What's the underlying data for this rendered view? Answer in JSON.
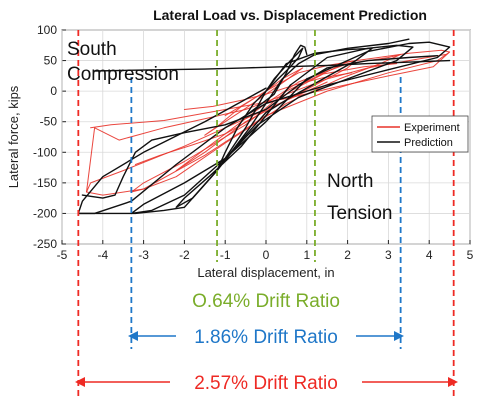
{
  "chart_data": {
    "type": "line",
    "title": "Lateral Load vs. Displacement Prediction",
    "xlabel": "Lateral displacement, in",
    "ylabel": "Lateral force, kips",
    "xlim": [
      -5,
      5
    ],
    "ylim": [
      -250,
      100
    ],
    "xticks": [
      -5,
      -4,
      -3,
      -2,
      -1,
      0,
      1,
      2,
      3,
      4,
      5
    ],
    "yticks": [
      -250,
      -200,
      -150,
      -100,
      -50,
      0,
      50,
      100
    ],
    "grid": true,
    "legend": {
      "position": "right",
      "entries": [
        "Experiment",
        "Prediction"
      ]
    },
    "series": [
      {
        "name": "Experiment",
        "color": "#e8332a",
        "loops": [
          [
            [
              -1.0,
              -40
            ],
            [
              -0.5,
              -20
            ],
            [
              0,
              0
            ],
            [
              0.4,
              20
            ],
            [
              0.9,
              38
            ],
            [
              0.5,
              18
            ],
            [
              0,
              -5
            ],
            [
              -0.5,
              -28
            ],
            [
              -1.0,
              -50
            ],
            [
              -1.5,
              -72
            ],
            [
              -1.2,
              -58
            ],
            [
              -0.6,
              -25
            ],
            [
              0,
              0
            ]
          ],
          [
            [
              0,
              0
            ],
            [
              0.8,
              30
            ],
            [
              1.5,
              42
            ],
            [
              2.2,
              50
            ],
            [
              2.0,
              38
            ],
            [
              1.2,
              10
            ],
            [
              0.5,
              -15
            ],
            [
              -0.5,
              -50
            ],
            [
              -1.5,
              -100
            ],
            [
              -2.2,
              -130
            ],
            [
              -1.8,
              -110
            ],
            [
              -1.0,
              -70
            ],
            [
              0,
              -20
            ],
            [
              0.8,
              15
            ]
          ],
          [
            [
              0.8,
              15
            ],
            [
              2.0,
              45
            ],
            [
              3.0,
              55
            ],
            [
              3.3,
              60
            ],
            [
              2.8,
              45
            ],
            [
              1.8,
              20
            ],
            [
              0.5,
              -20
            ],
            [
              -1.0,
              -85
            ],
            [
              -2.2,
              -140
            ],
            [
              -3.0,
              -160
            ],
            [
              -3.3,
              -165
            ],
            [
              -3.0,
              -150
            ],
            [
              -2.0,
              -115
            ],
            [
              -0.5,
              -55
            ],
            [
              0.5,
              0
            ]
          ],
          [
            [
              0.5,
              0
            ],
            [
              2.0,
              48
            ],
            [
              3.5,
              62
            ],
            [
              4.3,
              67
            ],
            [
              4.5,
              64
            ],
            [
              4.2,
              50
            ],
            [
              3.0,
              30
            ],
            [
              1.5,
              0
            ],
            [
              0,
              -40
            ],
            [
              -1.5,
              -105
            ],
            [
              -3.0,
              -160
            ],
            [
              -4.0,
              -170
            ],
            [
              -4.4,
              -165
            ],
            [
              -4.3,
              -150
            ],
            [
              -3.5,
              -130
            ],
            [
              -2.0,
              -90
            ],
            [
              0,
              -30
            ],
            [
              1.5,
              15
            ]
          ],
          [
            [
              -4.4,
              -165
            ],
            [
              -4.2,
              -60
            ],
            [
              -3.6,
              -80
            ],
            [
              -2.5,
              -60
            ],
            [
              -1.5,
              -45
            ],
            [
              -0.5,
              -30
            ],
            [
              0.5,
              -5
            ],
            [
              1.5,
              20
            ],
            [
              2.5,
              38
            ],
            [
              3.5,
              50
            ],
            [
              4.4,
              60
            ]
          ],
          [
            [
              4.5,
              64
            ],
            [
              4.1,
              40
            ],
            [
              3.0,
              25
            ],
            [
              1.8,
              8
            ],
            [
              0.5,
              -12
            ],
            [
              -1.0,
              -30
            ],
            [
              -2.5,
              -48
            ],
            [
              -3.8,
              -55
            ],
            [
              -4.3,
              -60
            ]
          ],
          [
            [
              -3.2,
              -120
            ],
            [
              -2.6,
              -105
            ],
            [
              -1.8,
              -88
            ],
            [
              -1.0,
              -70
            ],
            [
              -0.2,
              -40
            ],
            [
              0.6,
              0
            ],
            [
              1.4,
              28
            ],
            [
              2.4,
              40
            ],
            [
              3.2,
              45
            ]
          ],
          [
            [
              -2.0,
              -30
            ],
            [
              -1.3,
              -25
            ],
            [
              -0.6,
              -15
            ],
            [
              0,
              -5
            ],
            [
              0.7,
              10
            ],
            [
              1.4,
              22
            ],
            [
              2.1,
              30
            ]
          ]
        ]
      },
      {
        "name": "Prediction",
        "color": "#111111",
        "loops": [
          [
            [
              0,
              0
            ],
            [
              0.3,
              20
            ],
            [
              0.6,
              40
            ],
            [
              0.8,
              55
            ],
            [
              0.9,
              70
            ],
            [
              0.6,
              50
            ],
            [
              0.2,
              20
            ],
            [
              0,
              0
            ],
            [
              -0.3,
              -20
            ],
            [
              -0.7,
              -60
            ],
            [
              -1.0,
              -100
            ],
            [
              -1.2,
              -130
            ],
            [
              -1.0,
              -110
            ],
            [
              -0.5,
              -60
            ],
            [
              0,
              0
            ]
          ],
          [
            [
              0,
              0
            ],
            [
              0.5,
              45
            ],
            [
              1.2,
              62
            ],
            [
              2.0,
              68
            ],
            [
              2.6,
              70
            ],
            [
              2.2,
              50
            ],
            [
              1.4,
              20
            ],
            [
              0.6,
              -10
            ],
            [
              0,
              -35
            ],
            [
              -0.6,
              -80
            ],
            [
              -1.2,
              -130
            ],
            [
              -1.8,
              -175
            ],
            [
              -2.2,
              -190
            ],
            [
              -2.0,
              -175
            ],
            [
              -1.4,
              -140
            ],
            [
              -0.6,
              -90
            ],
            [
              0,
              -40
            ],
            [
              0.6,
              10
            ]
          ],
          [
            [
              0.6,
              10
            ],
            [
              1.5,
              55
            ],
            [
              2.5,
              70
            ],
            [
              3.2,
              75
            ],
            [
              3.6,
              72
            ],
            [
              3.2,
              50
            ],
            [
              2.0,
              20
            ],
            [
              0.8,
              -10
            ],
            [
              -0.2,
              -55
            ],
            [
              -1.0,
              -110
            ],
            [
              -2.0,
              -170
            ],
            [
              -2.8,
              -195
            ],
            [
              -3.3,
              -200
            ],
            [
              -3.0,
              -185
            ],
            [
              -2.0,
              -150
            ],
            [
              -1.0,
              -110
            ],
            [
              0,
              -50
            ],
            [
              1.0,
              20
            ]
          ],
          [
            [
              1.0,
              20
            ],
            [
              2.5,
              65
            ],
            [
              3.5,
              78
            ],
            [
              4.0,
              80
            ],
            [
              4.5,
              72
            ],
            [
              4.2,
              55
            ],
            [
              3.0,
              35
            ],
            [
              1.5,
              10
            ],
            [
              0,
              -20
            ],
            [
              -1.0,
              -60
            ],
            [
              -2.2,
              -120
            ],
            [
              -3.3,
              -180
            ],
            [
              -4.2,
              -200
            ],
            [
              -4.6,
              -200
            ],
            [
              -4.5,
              -180
            ],
            [
              -4.0,
              -140
            ],
            [
              -3.0,
              -100
            ],
            [
              -1.5,
              -50
            ],
            [
              0,
              5
            ]
          ],
          [
            [
              -4.6,
              -200
            ],
            [
              -3.8,
              -200
            ],
            [
              -3.2,
              -200
            ],
            [
              -2.5,
              -195
            ],
            [
              -2.0,
              -190
            ],
            [
              -1.6,
              -160
            ],
            [
              -1.2,
              -130
            ],
            [
              -0.8,
              -95
            ],
            [
              -0.4,
              -60
            ],
            [
              0,
              -20
            ],
            [
              0.4,
              20
            ],
            [
              0.8,
              45
            ],
            [
              1.2,
              60
            ],
            [
              2.0,
              70
            ],
            [
              3.0,
              78
            ],
            [
              3.5,
              85
            ]
          ],
          [
            [
              4.5,
              50
            ],
            [
              3.7,
              48
            ],
            [
              2.5,
              45
            ],
            [
              1.5,
              42
            ],
            [
              0.5,
              40
            ],
            [
              -0.5,
              38
            ],
            [
              -1.5,
              36
            ],
            [
              -2.5,
              35
            ],
            [
              -3.5,
              34
            ],
            [
              -4.2,
              33
            ]
          ],
          [
            [
              -4.5,
              -170
            ],
            [
              -4.3,
              -172
            ],
            [
              -4.0,
              -175
            ],
            [
              -3.7,
              -170
            ],
            [
              -3.5,
              -140
            ],
            [
              -3.2,
              -100
            ],
            [
              -2.8,
              -80
            ],
            [
              -2.0,
              -68
            ],
            [
              -1.0,
              -55
            ],
            [
              0,
              -30
            ],
            [
              0.8,
              10
            ],
            [
              1.5,
              38
            ],
            [
              2.5,
              50
            ],
            [
              3.5,
              55
            ],
            [
              4.2,
              58
            ]
          ],
          [
            [
              -0.6,
              -45
            ],
            [
              0.2,
              -5
            ],
            [
              0.5,
              30
            ],
            [
              0.7,
              60
            ],
            [
              0.85,
              75
            ],
            [
              0.95,
              72
            ],
            [
              1.0,
              60
            ]
          ]
        ]
      }
    ]
  },
  "annotations": {
    "south_line1": "South",
    "south_line2": "Compression",
    "north_line1": "North",
    "north_line2": "Tension"
  },
  "drift_ratios": [
    {
      "label": "O.64% Drift Ratio",
      "value": 0.64,
      "x_left": -1.2,
      "x_right": 1.2,
      "color": "#7aad2a"
    },
    {
      "label": "1.86% Drift Ratio",
      "value": 1.86,
      "x_left": -3.3,
      "x_right": 3.3,
      "color": "#1f77c8"
    },
    {
      "label": "2.57% Drift Ratio",
      "value": 2.57,
      "x_left": -4.6,
      "x_right": 4.6,
      "color": "#ee2a24"
    }
  ]
}
